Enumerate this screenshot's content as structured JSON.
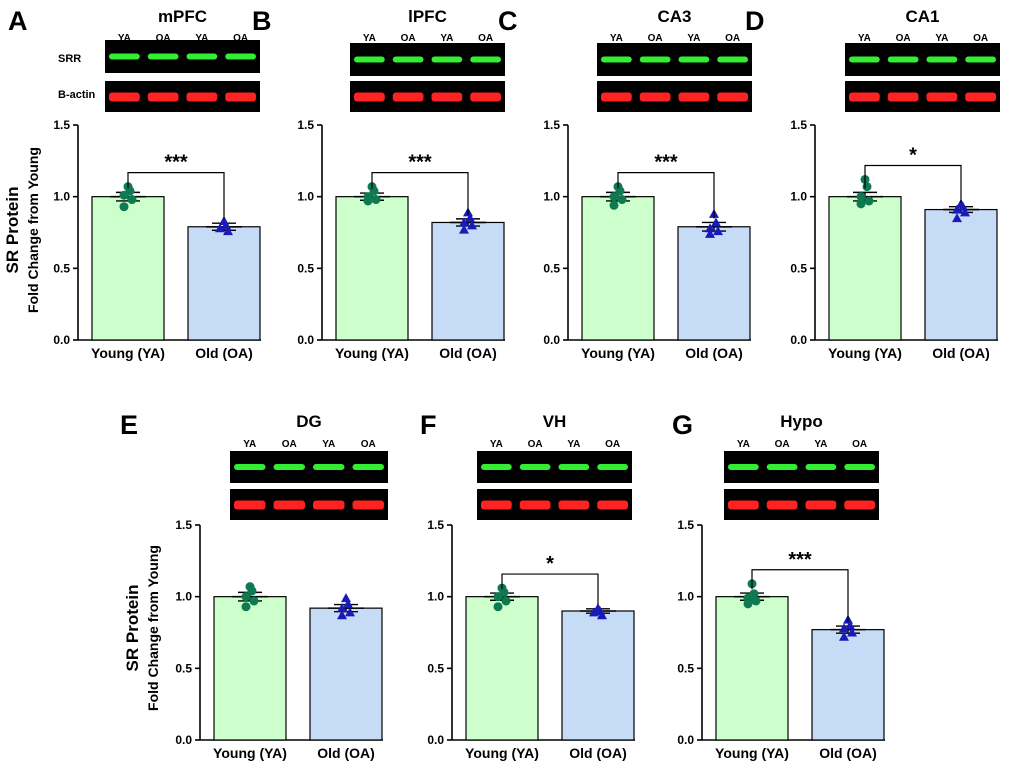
{
  "figure": {
    "ylabel_line1": "SR Protein",
    "ylabel_line2": "Fold Change from Young",
    "blot_row_labels": [
      "SRR",
      "B-actin"
    ],
    "blot_lane_labels": [
      "YA",
      "OA",
      "YA",
      "OA"
    ],
    "colors": {
      "young_fill": "#ccffcc",
      "old_fill": "#c6dbf5",
      "young_points": "#0e7a52",
      "old_points": "#1a1ab8",
      "srr_band": "#33ee33",
      "actin_band": "#ff2222",
      "blot_bg": "#000000"
    }
  },
  "chart_data": [
    {
      "panel": "A",
      "title": "mPFC",
      "type": "bar",
      "categories": [
        "Young (YA)",
        "Old (OA)"
      ],
      "values": [
        1.0,
        0.79
      ],
      "sem": [
        0.03,
        0.025
      ],
      "ylim": [
        0,
        1.5
      ],
      "yticks": [
        "0.0",
        "0.5",
        "1.0",
        "1.5"
      ],
      "significance": "***",
      "young_points": [
        1.07,
        1.04,
        1.01,
        0.98,
        0.93
      ],
      "old_points": [
        0.83,
        0.8,
        0.78,
        0.76
      ]
    },
    {
      "panel": "B",
      "title": "lPFC",
      "type": "bar",
      "categories": [
        "Young (YA)",
        "Old (OA)"
      ],
      "values": [
        1.0,
        0.82
      ],
      "sem": [
        0.025,
        0.025
      ],
      "ylim": [
        0,
        1.5
      ],
      "yticks": [
        "0.0",
        "0.5",
        "1.0",
        "1.5"
      ],
      "significance": "***",
      "young_points": [
        1.07,
        1.04,
        1.0,
        0.98,
        0.97
      ],
      "old_points": [
        0.89,
        0.85,
        0.82,
        0.8,
        0.77
      ]
    },
    {
      "panel": "C",
      "title": "CA3",
      "type": "bar",
      "categories": [
        "Young (YA)",
        "Old (OA)"
      ],
      "values": [
        1.0,
        0.79
      ],
      "sem": [
        0.03,
        0.03
      ],
      "ylim": [
        0,
        1.5
      ],
      "yticks": [
        "0.0",
        "0.5",
        "1.0",
        "1.5"
      ],
      "significance": "***",
      "young_points": [
        1.07,
        1.04,
        1.0,
        0.98,
        0.94
      ],
      "old_points": [
        0.88,
        0.82,
        0.78,
        0.76,
        0.74
      ]
    },
    {
      "panel": "D",
      "title": "CA1",
      "type": "bar",
      "categories": [
        "Young (YA)",
        "Old (OA)"
      ],
      "values": [
        1.0,
        0.91
      ],
      "sem": [
        0.03,
        0.02
      ],
      "ylim": [
        0,
        1.5
      ],
      "yticks": [
        "0.0",
        "0.5",
        "1.0",
        "1.5"
      ],
      "significance": "*",
      "young_points": [
        1.12,
        1.07,
        1.0,
        0.97,
        0.95
      ],
      "old_points": [
        0.95,
        0.93,
        0.91,
        0.89,
        0.85
      ]
    },
    {
      "panel": "E",
      "title": "DG",
      "type": "bar",
      "categories": [
        "Young (YA)",
        "Old (OA)"
      ],
      "values": [
        1.0,
        0.92
      ],
      "sem": [
        0.03,
        0.025
      ],
      "ylim": [
        0,
        1.5
      ],
      "yticks": [
        "0.0",
        "0.5",
        "1.0",
        "1.5"
      ],
      "significance": "",
      "young_points": [
        1.07,
        1.04,
        1.0,
        0.97,
        0.93
      ],
      "old_points": [
        0.99,
        0.95,
        0.92,
        0.89,
        0.87
      ]
    },
    {
      "panel": "F",
      "title": "VH",
      "type": "bar",
      "categories": [
        "Young (YA)",
        "Old (OA)"
      ],
      "values": [
        1.0,
        0.9
      ],
      "sem": [
        0.025,
        0.015
      ],
      "ylim": [
        0,
        1.5
      ],
      "yticks": [
        "0.0",
        "0.5",
        "1.0",
        "1.5"
      ],
      "significance": "*",
      "young_points": [
        1.06,
        1.03,
        1.0,
        0.97,
        0.93
      ],
      "old_points": [
        0.92,
        0.9,
        0.89,
        0.87
      ]
    },
    {
      "panel": "G",
      "title": "Hypo",
      "type": "bar",
      "categories": [
        "Young (YA)",
        "Old (OA)"
      ],
      "values": [
        1.0,
        0.77
      ],
      "sem": [
        0.025,
        0.025
      ],
      "ylim": [
        0,
        1.5
      ],
      "yticks": [
        "0.0",
        "0.5",
        "1.0",
        "1.5"
      ],
      "significance": "***",
      "young_points": [
        1.09,
        1.02,
        0.99,
        0.97,
        0.95
      ],
      "old_points": [
        0.84,
        0.8,
        0.78,
        0.75,
        0.72
      ]
    }
  ]
}
